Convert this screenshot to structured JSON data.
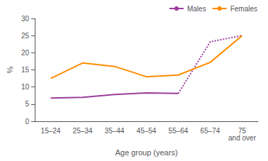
{
  "chart_data": {
    "type": "line",
    "categories": [
      "15–24",
      "25–34",
      "35–44",
      "45–54",
      "55–64",
      "65–74",
      "75\nand over"
    ],
    "series": [
      {
        "name": "Males",
        "color": "#9B3E9B",
        "line_style": "solid",
        "values": [
          6.8,
          7.0,
          7.8,
          8.3,
          8.1,
          null,
          null
        ]
      },
      {
        "color": "#9B3E9B",
        "line_style": "dotted",
        "values": [
          null,
          null,
          null,
          null,
          8.1,
          23.2,
          25.0
        ]
      },
      {
        "name": "Females",
        "color": "#FF8C00",
        "line_style": "solid",
        "values": [
          12.5,
          17.0,
          16.0,
          13.0,
          13.5,
          17.2,
          25.0
        ]
      }
    ],
    "xlabel": "Age group (years)",
    "ylabel": "%",
    "ylim": [
      0,
      30
    ],
    "yticks": [
      0,
      5,
      10,
      15,
      20,
      25,
      30
    ],
    "grid": false,
    "legend": "upper right"
  }
}
